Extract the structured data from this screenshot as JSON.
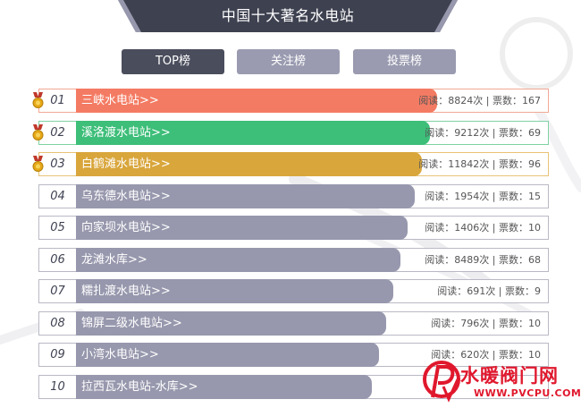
{
  "page": {
    "title": "中国十大著名水电站"
  },
  "tabs": [
    {
      "label": "TOP榜",
      "active": true
    },
    {
      "label": "关注榜",
      "active": false
    },
    {
      "label": "投票榜",
      "active": false
    }
  ],
  "list": [
    {
      "rank": "01",
      "name": "三峡水电站>>",
      "stats": "阅读：8824次 | 票数：167",
      "color": "#f47b63",
      "border": "#f2a894",
      "bar_fraction": 0.707,
      "medal": "gold"
    },
    {
      "rank": "02",
      "name": "溪洛渡水电站>>",
      "stats": "阅读：9212次 | 票数：69",
      "color": "#3dbe79",
      "border": "#7fd2a3",
      "bar_fraction": 0.693,
      "medal": "gold"
    },
    {
      "rank": "03",
      "name": "白鹤滩水电站>>",
      "stats": "阅读：11842次 | 票数：96",
      "color": "#d9a63c",
      "border": "#e7c377",
      "bar_fraction": 0.678,
      "medal": "gold"
    },
    {
      "rank": "04",
      "name": "乌东德水电站>>",
      "stats": "阅读：1954次 | 票数：15",
      "color": "#9798ad",
      "border": "#b9b9c6",
      "bar_fraction": 0.664,
      "medal": null
    },
    {
      "rank": "05",
      "name": "向家坝水电站>>",
      "stats": "阅读：1406次 | 票数：10",
      "color": "#9798ad",
      "border": "#b9b9c6",
      "bar_fraction": 0.65,
      "medal": null
    },
    {
      "rank": "06",
      "name": "龙滩水库>>",
      "stats": "阅读：8489次 | 票数：68",
      "color": "#9798ad",
      "border": "#b9b9c6",
      "bar_fraction": 0.636,
      "medal": null
    },
    {
      "rank": "07",
      "name": "糯扎渡水电站>>",
      "stats": "阅读：691次 | 票数：9",
      "color": "#9798ad",
      "border": "#b9b9c6",
      "bar_fraction": 0.621,
      "medal": null
    },
    {
      "rank": "08",
      "name": "锦屏二级水电站>>",
      "stats": "阅读：796次 | 票数：10",
      "color": "#9798ad",
      "border": "#b9b9c6",
      "bar_fraction": 0.607,
      "medal": null
    },
    {
      "rank": "09",
      "name": "小湾水电站>>",
      "stats": "阅读：620次 | 票数：10",
      "color": "#9798ad",
      "border": "#b9b9c6",
      "bar_fraction": 0.593,
      "medal": null
    },
    {
      "rank": "10",
      "name": "拉西瓦水电站-水库>>",
      "stats": "",
      "color": "#9798ad",
      "border": "#b9b9c6",
      "bar_fraction": 0.579,
      "medal": null
    }
  ],
  "watermark": {
    "title": "水暖阀门网",
    "url": "WWW.PVCPU.COM"
  }
}
